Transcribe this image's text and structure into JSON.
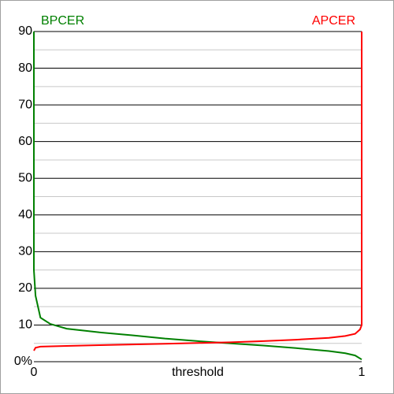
{
  "chart_data": {
    "type": "line",
    "x_label": "threshold",
    "xlim": [
      0,
      1
    ],
    "xticks": [
      0,
      1
    ],
    "ylim": [
      0,
      90
    ],
    "yticks": [
      {
        "value": 0,
        "label": "0%"
      },
      10,
      20,
      30,
      40,
      50,
      60,
      70,
      80,
      90
    ],
    "minor_yticks": [
      5,
      15,
      25,
      35,
      45,
      55,
      65,
      75,
      85
    ],
    "grid": true,
    "series": [
      {
        "name": "BPCER",
        "color": "#008000",
        "legend_corner": "top-left",
        "x": [
          0,
          0,
          0.005,
          0.02,
          0.05,
          0.1,
          0.2,
          0.3,
          0.4,
          0.5,
          0.6,
          0.7,
          0.8,
          0.9,
          0.95,
          0.98,
          1
        ],
        "values": [
          90,
          25,
          18,
          12,
          10.3,
          9,
          8,
          7.2,
          6.3,
          5.6,
          5,
          4.4,
          3.7,
          2.9,
          2.3,
          1.7,
          0.6
        ]
      },
      {
        "name": "APCER",
        "color": "#ff0000",
        "legend_corner": "top-right",
        "x": [
          0,
          0.005,
          0.02,
          0.1,
          0.2,
          0.3,
          0.4,
          0.5,
          0.6,
          0.7,
          0.8,
          0.9,
          0.95,
          0.98,
          0.995,
          1,
          1
        ],
        "values": [
          3,
          3.8,
          4.1,
          4.3,
          4.5,
          4.7,
          4.9,
          5.1,
          5.3,
          5.6,
          6,
          6.5,
          7,
          7.6,
          8.8,
          10,
          90
        ]
      }
    ]
  }
}
